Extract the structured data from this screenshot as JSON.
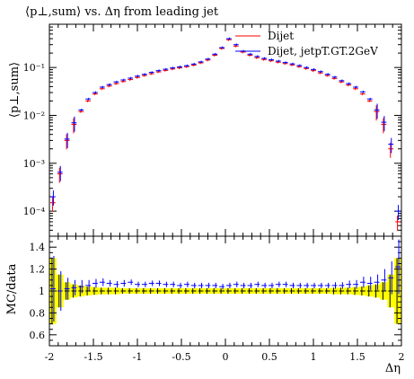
{
  "chart_data": [
    {
      "type": "scatter",
      "panel": "main",
      "title": "⟨p⊥,sum⟩ vs. Δη from leading jet",
      "xlabel": "",
      "ylabel": "⟨p⊥,sum⟩",
      "xlim": [
        -2,
        2
      ],
      "ylim": [
        3e-05,
        0.8
      ],
      "yscale": "log",
      "yticks": [
        0.0001,
        0.001,
        0.01,
        0.1
      ],
      "ytick_labels": [
        "10⁻⁴",
        "10⁻³",
        "10⁻²",
        "10⁻¹"
      ],
      "legend_position": "top-right",
      "series": [
        {
          "name": "Dijet",
          "color": "#ff0000",
          "x": [
            -1.96,
            -1.88,
            -1.8,
            -1.72,
            -1.64,
            -1.56,
            -1.48,
            -1.4,
            -1.32,
            -1.24,
            -1.16,
            -1.08,
            -1.0,
            -0.92,
            -0.84,
            -0.76,
            -0.68,
            -0.6,
            -0.52,
            -0.44,
            -0.36,
            -0.28,
            -0.2,
            -0.12,
            -0.04,
            0.04,
            0.12,
            0.2,
            0.28,
            0.36,
            0.44,
            0.52,
            0.6,
            0.68,
            0.76,
            0.84,
            0.92,
            1.0,
            1.08,
            1.16,
            1.24,
            1.32,
            1.4,
            1.48,
            1.56,
            1.64,
            1.72,
            1.8,
            1.88,
            1.96
          ],
          "y": [
            0.00015,
            0.0006,
            0.003,
            0.0065,
            0.012,
            0.02,
            0.028,
            0.036,
            0.041,
            0.046,
            0.051,
            0.056,
            0.062,
            0.068,
            0.074,
            0.081,
            0.087,
            0.093,
            0.098,
            0.104,
            0.112,
            0.125,
            0.143,
            0.18,
            0.25,
            0.38,
            0.28,
            0.21,
            0.18,
            0.16,
            0.147,
            0.138,
            0.129,
            0.121,
            0.113,
            0.104,
            0.095,
            0.086,
            0.077,
            0.068,
            0.059,
            0.05,
            0.043,
            0.036,
            0.028,
            0.02,
            0.012,
            0.0065,
            0.002,
            6e-05
          ]
        },
        {
          "name": "Dijet, jetpT.GT.2GeV",
          "color": "#0000ff",
          "x": [
            -1.96,
            -1.88,
            -1.8,
            -1.72,
            -1.64,
            -1.56,
            -1.48,
            -1.4,
            -1.32,
            -1.24,
            -1.16,
            -1.08,
            -1.0,
            -0.92,
            -0.84,
            -0.76,
            -0.68,
            -0.6,
            -0.52,
            -0.44,
            -0.36,
            -0.28,
            -0.2,
            -0.12,
            -0.04,
            0.04,
            0.12,
            0.2,
            0.28,
            0.36,
            0.44,
            0.52,
            0.6,
            0.68,
            0.76,
            0.84,
            0.92,
            1.0,
            1.08,
            1.16,
            1.24,
            1.32,
            1.4,
            1.48,
            1.56,
            1.64,
            1.72,
            1.8,
            1.88,
            1.96
          ],
          "y": [
            0.0002,
            0.00065,
            0.0032,
            0.007,
            0.013,
            0.022,
            0.03,
            0.039,
            0.044,
            0.05,
            0.055,
            0.06,
            0.066,
            0.072,
            0.079,
            0.086,
            0.092,
            0.098,
            0.103,
            0.109,
            0.118,
            0.131,
            0.15,
            0.19,
            0.26,
            0.4,
            0.3,
            0.22,
            0.19,
            0.17,
            0.155,
            0.145,
            0.136,
            0.127,
            0.119,
            0.11,
            0.1,
            0.091,
            0.082,
            0.072,
            0.063,
            0.053,
            0.046,
            0.039,
            0.031,
            0.022,
            0.013,
            0.0072,
            0.0025,
            0.0001
          ]
        }
      ]
    },
    {
      "type": "scatter",
      "panel": "ratio",
      "xlabel": "Δη",
      "ylabel": "MC/data",
      "xlim": [
        -2,
        2
      ],
      "ylim": [
        0.5,
        1.5
      ],
      "yticks": [
        0.6,
        0.8,
        1,
        1.2,
        1.4
      ],
      "ytick_labels": [
        "0.6",
        "0.8",
        "1",
        "1.2",
        "1.4"
      ],
      "xticks": [
        -2,
        -1.5,
        -1,
        -0.5,
        0,
        0.5,
        1,
        1.5,
        2
      ],
      "xtick_labels": [
        "-2",
        "-1.5",
        "-1",
        "-0.5",
        "0",
        "0.5",
        "1",
        "1.5",
        "2"
      ],
      "band_color": "#ffff00",
      "series": [
        {
          "name": "Dijet",
          "color": "#000000",
          "x": [
            -1.96,
            -1.88,
            -1.8,
            -1.72,
            -1.64,
            -1.56,
            -1.48,
            -1.4,
            -1.32,
            -1.24,
            -1.16,
            -1.08,
            -1.0,
            -0.92,
            -0.84,
            -0.76,
            -0.68,
            -0.6,
            -0.52,
            -0.44,
            -0.36,
            -0.28,
            -0.2,
            -0.12,
            -0.04,
            0.04,
            0.12,
            0.2,
            0.28,
            0.36,
            0.44,
            0.52,
            0.6,
            0.68,
            0.76,
            0.84,
            0.92,
            1.0,
            1.08,
            1.16,
            1.24,
            1.32,
            1.4,
            1.48,
            1.56,
            1.64,
            1.72,
            1.8,
            1.88,
            1.96
          ],
          "y": [
            1.0,
            1.0,
            1.0,
            1.0,
            1.0,
            1.0,
            1.0,
            1.0,
            1.0,
            1.0,
            1.0,
            1.0,
            1.0,
            1.0,
            1.0,
            1.0,
            1.0,
            1.0,
            1.0,
            1.0,
            1.0,
            1.0,
            1.0,
            1.0,
            1.0,
            1.0,
            1.0,
            1.0,
            1.0,
            1.0,
            1.0,
            1.0,
            1.0,
            1.0,
            1.0,
            1.0,
            1.0,
            1.0,
            1.0,
            1.0,
            1.0,
            1.0,
            1.0,
            1.0,
            1.0,
            1.0,
            1.0,
            1.0,
            1.0,
            1.0
          ],
          "err": [
            0.3,
            0.15,
            0.08,
            0.06,
            0.05,
            0.04,
            0.035,
            0.03,
            0.03,
            0.03,
            0.025,
            0.025,
            0.025,
            0.025,
            0.025,
            0.025,
            0.025,
            0.025,
            0.025,
            0.025,
            0.025,
            0.025,
            0.025,
            0.025,
            0.025,
            0.025,
            0.025,
            0.025,
            0.025,
            0.025,
            0.025,
            0.025,
            0.025,
            0.025,
            0.025,
            0.025,
            0.025,
            0.025,
            0.025,
            0.025,
            0.03,
            0.03,
            0.03,
            0.035,
            0.04,
            0.05,
            0.06,
            0.08,
            0.15,
            0.3
          ]
        },
        {
          "name": "Dijet, jetpT.GT.2GeV",
          "color": "#0000ff",
          "x": [
            -1.96,
            -1.88,
            -1.8,
            -1.72,
            -1.64,
            -1.56,
            -1.48,
            -1.4,
            -1.32,
            -1.24,
            -1.16,
            -1.08,
            -1.0,
            -0.92,
            -0.84,
            -0.76,
            -0.68,
            -0.6,
            -0.52,
            -0.44,
            -0.36,
            -0.28,
            -0.2,
            -0.12,
            -0.04,
            0.04,
            0.12,
            0.2,
            0.28,
            0.36,
            0.44,
            0.52,
            0.6,
            0.68,
            0.76,
            0.84,
            0.92,
            1.0,
            1.08,
            1.16,
            1.24,
            1.32,
            1.4,
            1.48,
            1.56,
            1.64,
            1.72,
            1.8,
            1.88,
            1.96
          ],
          "y": [
            1.02,
            1.0,
            1.02,
            1.03,
            1.04,
            1.05,
            1.07,
            1.08,
            1.07,
            1.06,
            1.07,
            1.08,
            1.06,
            1.06,
            1.07,
            1.07,
            1.06,
            1.06,
            1.05,
            1.06,
            1.05,
            1.05,
            1.05,
            1.05,
            1.04,
            1.05,
            1.06,
            1.05,
            1.05,
            1.06,
            1.05,
            1.05,
            1.06,
            1.06,
            1.05,
            1.05,
            1.05,
            1.05,
            1.05,
            1.05,
            1.05,
            1.05,
            1.06,
            1.06,
            1.08,
            1.07,
            1.08,
            1.1,
            1.12,
            1.22
          ],
          "err": [
            0.3,
            0.18,
            0.1,
            0.07,
            0.06,
            0.05,
            0.04,
            0.035,
            0.03,
            0.03,
            0.03,
            0.025,
            0.025,
            0.025,
            0.025,
            0.025,
            0.025,
            0.025,
            0.025,
            0.025,
            0.025,
            0.025,
            0.025,
            0.025,
            0.025,
            0.025,
            0.025,
            0.025,
            0.025,
            0.025,
            0.025,
            0.025,
            0.025,
            0.025,
            0.025,
            0.025,
            0.025,
            0.025,
            0.025,
            0.025,
            0.03,
            0.03,
            0.035,
            0.04,
            0.05,
            0.06,
            0.07,
            0.1,
            0.15,
            0.25
          ]
        }
      ]
    }
  ]
}
